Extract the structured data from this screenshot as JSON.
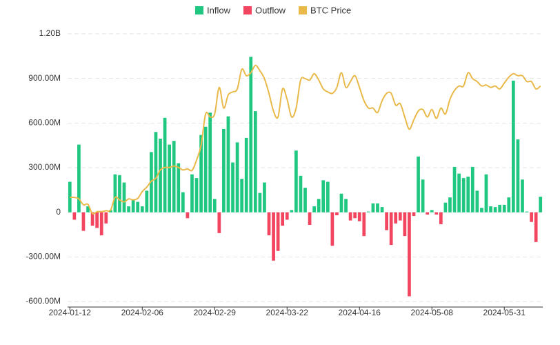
{
  "chart_data": {
    "type": "bar_line",
    "categories": [
      "2024-01-12",
      null,
      null,
      null,
      null,
      null,
      null,
      null,
      null,
      null,
      null,
      null,
      null,
      null,
      null,
      null,
      "2024-02-06",
      null,
      null,
      null,
      null,
      null,
      null,
      null,
      null,
      null,
      null,
      null,
      null,
      null,
      null,
      null,
      "2024-02-29",
      null,
      null,
      null,
      null,
      null,
      null,
      null,
      null,
      null,
      null,
      null,
      null,
      null,
      null,
      null,
      "2024-03-22",
      null,
      null,
      null,
      null,
      null,
      null,
      null,
      null,
      null,
      null,
      null,
      null,
      null,
      null,
      null,
      "2024-04-16",
      null,
      null,
      null,
      null,
      null,
      null,
      null,
      null,
      null,
      null,
      null,
      null,
      null,
      null,
      null,
      "2024-05-08",
      null,
      null,
      null,
      null,
      null,
      null,
      null,
      null,
      null,
      null,
      null,
      null,
      null,
      null,
      null,
      "2024-05-31",
      null,
      null,
      null,
      null,
      null,
      null,
      null,
      null
    ],
    "series": [
      {
        "name": "Inflow",
        "color": "#1fc781",
        "values": [
          205000000,
          null,
          455000000,
          null,
          40000000,
          null,
          null,
          null,
          null,
          15000000,
          255000000,
          250000000,
          200000000,
          40000000,
          80000000,
          70000000,
          40000000,
          145000000,
          405000000,
          540000000,
          495000000,
          635000000,
          455000000,
          480000000,
          330000000,
          135000000,
          null,
          255000000,
          230000000,
          520000000,
          575000000,
          670000000,
          90000000,
          null,
          560000000,
          645000000,
          335000000,
          470000000,
          225000000,
          500000000,
          1045000000,
          680000000,
          130000000,
          200000000,
          null,
          null,
          null,
          null,
          null,
          15000000,
          415000000,
          245000000,
          165000000,
          null,
          40000000,
          90000000,
          215000000,
          205000000,
          null,
          null,
          125000000,
          90000000,
          null,
          null,
          null,
          null,
          5000000,
          60000000,
          60000000,
          35000000,
          null,
          null,
          null,
          null,
          null,
          null,
          null,
          375000000,
          220000000,
          null,
          15000000,
          null,
          null,
          65000000,
          100000000,
          305000000,
          260000000,
          230000000,
          240000000,
          305000000,
          145000000,
          30000000,
          255000000,
          40000000,
          35000000,
          50000000,
          50000000,
          100000000,
          885000000,
          490000000,
          220000000,
          5000000,
          null,
          null,
          105000000
        ]
      },
      {
        "name": "Outflow",
        "color": "#f2455f",
        "values": [
          null,
          -50000000,
          null,
          -125000000,
          null,
          -90000000,
          -105000000,
          -155000000,
          -75000000,
          null,
          null,
          null,
          null,
          null,
          null,
          null,
          null,
          null,
          null,
          null,
          null,
          null,
          null,
          null,
          null,
          null,
          -40000000,
          null,
          null,
          null,
          null,
          null,
          null,
          -140000000,
          null,
          null,
          null,
          null,
          null,
          null,
          null,
          null,
          null,
          null,
          -155000000,
          -325000000,
          -260000000,
          -90000000,
          -50000000,
          null,
          null,
          null,
          null,
          -85000000,
          null,
          null,
          null,
          null,
          -225000000,
          -20000000,
          null,
          null,
          -55000000,
          -40000000,
          -60000000,
          -160000000,
          null,
          null,
          null,
          null,
          -120000000,
          -220000000,
          -75000000,
          -55000000,
          -160000000,
          -565000000,
          -25000000,
          null,
          null,
          -15000000,
          null,
          -15000000,
          -80000000,
          null,
          null,
          null,
          null,
          null,
          null,
          null,
          null,
          null,
          null,
          null,
          null,
          null,
          null,
          null,
          null,
          null,
          null,
          null,
          -65000000,
          -200000000,
          null
        ]
      },
      {
        "name": "BTC Price",
        "color": "#e9b949",
        "type": "line",
        "axis": "y2",
        "values": [
          46000,
          46000,
          45700,
          44500,
          44600,
          42700,
          43100,
          43100,
          43300,
          43400,
          46000,
          45500,
          45100,
          45700,
          45500,
          45800,
          47200,
          48100,
          49300,
          49900,
          51600,
          52100,
          52100,
          52400,
          52100,
          51600,
          51800,
          51500,
          53600,
          56600,
          63000,
          62400,
          63000,
          68400,
          64200,
          66900,
          67500,
          68100,
          72100,
          70800,
          71400,
          72900,
          71800,
          70200,
          67200,
          63600,
          62400,
          68100,
          66000,
          62400,
          64200,
          69900,
          70200,
          69900,
          71200,
          69900,
          68100,
          67500,
          67200,
          68400,
          71400,
          68400,
          69600,
          70800,
          68400,
          65700,
          64200,
          64200,
          63300,
          65700,
          67200,
          67200,
          64800,
          65100,
          62400,
          59900,
          61800,
          63600,
          63900,
          62400,
          63900,
          62100,
          64200,
          63000,
          66000,
          67800,
          68700,
          68700,
          71400,
          70200,
          69600,
          68700,
          68900,
          68400,
          68700,
          68100,
          69300,
          70500,
          71200,
          70800,
          70800,
          69600,
          69600,
          68100,
          68700
        ]
      }
    ],
    "ylim": [
      -600000000,
      1200000000
    ],
    "yticks": [
      {
        "value": -600000000,
        "label": "-600.00M"
      },
      {
        "value": -300000000,
        "label": "-300.00M"
      },
      0,
      {
        "value": 300000000,
        "label": "300.00M"
      },
      {
        "value": 600000000,
        "label": "600.00M"
      },
      {
        "value": 900000000,
        "label": "900.00M"
      },
      {
        "value": 1200000000,
        "label": "1.20B"
      }
    ],
    "y2lim": [
      24790,
      79330
    ],
    "grid": true,
    "legend": "top"
  }
}
